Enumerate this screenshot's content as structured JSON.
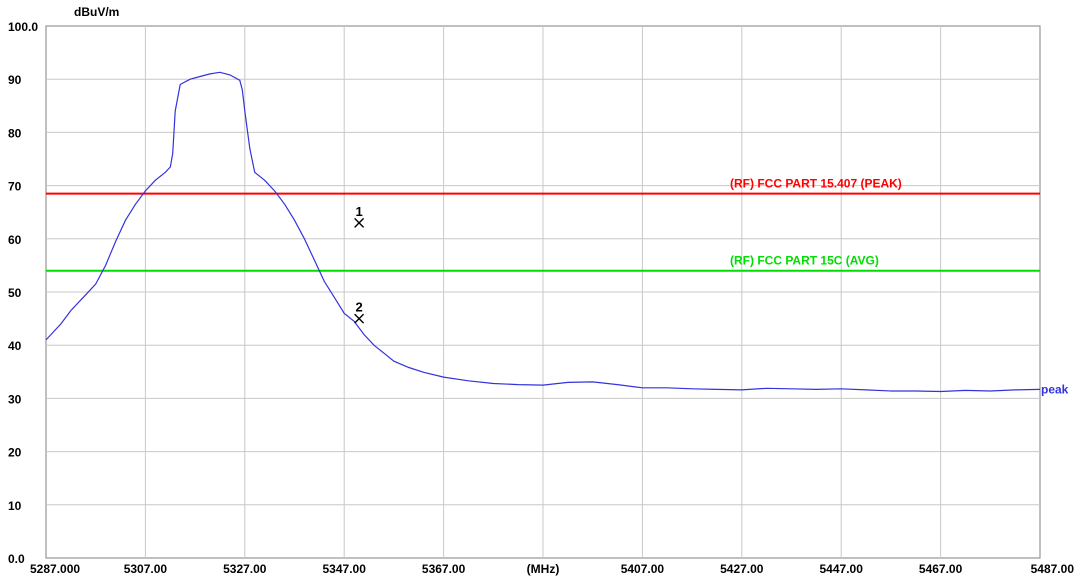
{
  "chart_data": {
    "type": "line",
    "ylabel": "dBuV/m",
    "xlabel": "(MHz)",
    "xlim": [
      5287,
      5487
    ],
    "ylim": [
      0,
      100
    ],
    "grid": true,
    "y_ticks": [
      {
        "value": 100,
        "label": "100.0"
      },
      {
        "value": 90,
        "label": "90"
      },
      {
        "value": 80,
        "label": "80"
      },
      {
        "value": 70,
        "label": "70"
      },
      {
        "value": 60,
        "label": "60"
      },
      {
        "value": 50,
        "label": "50"
      },
      {
        "value": 40,
        "label": "40"
      },
      {
        "value": 30,
        "label": "30"
      },
      {
        "value": 20,
        "label": "20"
      },
      {
        "value": 10,
        "label": "10"
      },
      {
        "value": 0,
        "label": "0.0"
      }
    ],
    "x_ticks": [
      {
        "value": 5287,
        "label": "5287.000"
      },
      {
        "value": 5307,
        "label": "5307.00"
      },
      {
        "value": 5327,
        "label": "5327.00"
      },
      {
        "value": 5347,
        "label": "5347.00"
      },
      {
        "value": 5367,
        "label": "5367.00"
      },
      {
        "value": 5387,
        "label": "(MHz)"
      },
      {
        "value": 5407,
        "label": "5407.00"
      },
      {
        "value": 5427,
        "label": "5427.00"
      },
      {
        "value": 5447,
        "label": "5447.00"
      },
      {
        "value": 5467,
        "label": "5467.00"
      },
      {
        "value": 5487,
        "label": "5487.00"
      }
    ],
    "limit_lines": [
      {
        "name": "(RF) FCC PART 15.407 (PEAK)",
        "value": 68.5,
        "color": "#ff0000"
      },
      {
        "name": "(RF) FCC PART 15C (AVG)",
        "value": 54.0,
        "color": "#00dd00"
      }
    ],
    "markers": [
      {
        "label": "1",
        "x": 5350.0,
        "y": 63.0
      },
      {
        "label": "2",
        "x": 5350.0,
        "y": 45.0
      }
    ],
    "series": [
      {
        "name": "peak",
        "color": "#3333dd",
        "x": [
          5287,
          5290,
          5292,
          5295,
          5297,
          5299,
          5301,
          5303,
          5305,
          5307,
          5309,
          5311,
          5312,
          5312.5,
          5313,
          5314,
          5316,
          5318,
          5320,
          5322,
          5324,
          5326,
          5326.5,
          5327,
          5328,
          5329,
          5331,
          5333,
          5335,
          5337,
          5339,
          5341,
          5343,
          5345,
          5347,
          5349,
          5351,
          5353,
          5355,
          5357,
          5360,
          5363,
          5367,
          5372,
          5377,
          5382,
          5387,
          5392,
          5397,
          5402,
          5407,
          5412,
          5417,
          5422,
          5427,
          5432,
          5437,
          5442,
          5447,
          5452,
          5457,
          5462,
          5467,
          5472,
          5477,
          5482,
          5487
        ],
        "values": [
          41.0,
          44.0,
          46.5,
          49.5,
          51.5,
          55.0,
          59.5,
          63.5,
          66.5,
          69.0,
          71.0,
          72.5,
          73.5,
          76.0,
          84.0,
          89.0,
          90.0,
          90.5,
          91.0,
          91.3,
          90.8,
          89.8,
          88.0,
          84.0,
          77.0,
          72.5,
          71.0,
          69.0,
          66.5,
          63.5,
          60.0,
          56.0,
          52.0,
          49.0,
          46.0,
          44.5,
          42.0,
          40.0,
          38.5,
          37.0,
          35.8,
          34.9,
          34.0,
          33.3,
          32.8,
          32.6,
          32.5,
          33.0,
          33.1,
          32.6,
          32.0,
          32.0,
          31.8,
          31.7,
          31.6,
          31.9,
          31.8,
          31.7,
          31.8,
          31.6,
          31.4,
          31.4,
          31.3,
          31.5,
          31.4,
          31.6,
          31.7
        ]
      }
    ]
  }
}
